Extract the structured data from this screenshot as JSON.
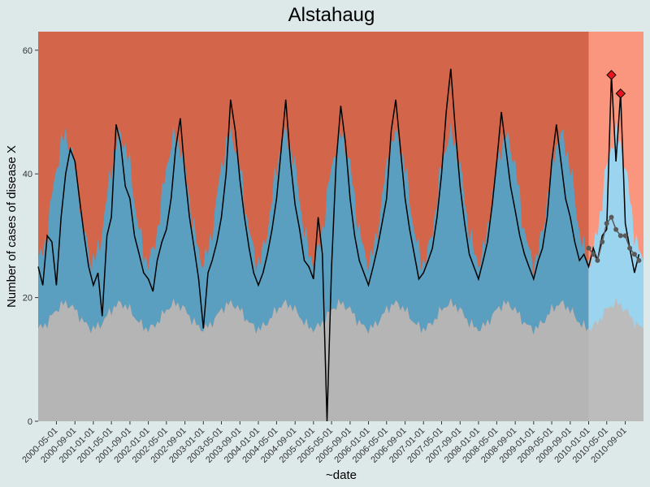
{
  "chart_data": {
    "type": "line",
    "title": "Alstahaug",
    "xlabel": "~date",
    "ylabel": "Number of cases of disease X",
    "ylim": [
      0,
      63
    ],
    "y_ticks": [
      0,
      20,
      40,
      60
    ],
    "x_ticks": [
      "2000-05-01",
      "2000-09-01",
      "2001-01-01",
      "2001-05-01",
      "2001-09-01",
      "2002-01-01",
      "2002-05-01",
      "2002-09-01",
      "2003-01-01",
      "2003-05-01",
      "2003-09-01",
      "2004-01-01",
      "2004-05-01",
      "2004-09-01",
      "2005-01-01",
      "2005-05-01",
      "2005-09-01",
      "2006-01-01",
      "2006-05-01",
      "2006-09-01",
      "2007-01-01",
      "2007-05-01",
      "2007-09-01",
      "2008-01-01",
      "2008-05-01",
      "2008-09-01",
      "2009-01-01",
      "2009-05-01",
      "2009-09-01",
      "2010-01-01",
      "2010-05-01",
      "2010-09-01"
    ],
    "x_range": [
      "2000-01-01",
      "2010-12-31"
    ],
    "forecast_start": "2010-01-01",
    "grid": false,
    "colors": {
      "background": "#dde9e9",
      "alert_zone": "#d2654a",
      "alert_zone_forecast": "#fa8a70",
      "normal_band": "#5a9fc0",
      "normal_band_forecast": "#8fd0ee",
      "baseline_zone": "#b5b5b5",
      "forecast_shade": "#ffffff",
      "observed_line": "#000000",
      "forecast_points": "#595959",
      "outbreak_marker": "#e8141e"
    },
    "series": [
      {
        "name": "observed",
        "points": [
          [
            "2000-01-01",
            25
          ],
          [
            "2000-02-01",
            22
          ],
          [
            "2000-03-01",
            30
          ],
          [
            "2000-04-01",
            29
          ],
          [
            "2000-05-01",
            22
          ],
          [
            "2000-06-01",
            33
          ],
          [
            "2000-07-01",
            40
          ],
          [
            "2000-08-01",
            44
          ],
          [
            "2000-09-01",
            42
          ],
          [
            "2000-10-01",
            36
          ],
          [
            "2000-11-01",
            30
          ],
          [
            "2000-12-01",
            25
          ],
          [
            "2001-01-01",
            22
          ],
          [
            "2001-02-01",
            24
          ],
          [
            "2001-03-01",
            17
          ],
          [
            "2001-04-01",
            30
          ],
          [
            "2001-05-01",
            33
          ],
          [
            "2001-06-01",
            48
          ],
          [
            "2001-07-01",
            45
          ],
          [
            "2001-08-01",
            38
          ],
          [
            "2001-09-01",
            36
          ],
          [
            "2001-10-01",
            30
          ],
          [
            "2001-11-01",
            27
          ],
          [
            "2001-12-01",
            24
          ],
          [
            "2002-01-01",
            23
          ],
          [
            "2002-02-01",
            21
          ],
          [
            "2002-03-01",
            26
          ],
          [
            "2002-04-01",
            29
          ],
          [
            "2002-05-01",
            31
          ],
          [
            "2002-06-01",
            36
          ],
          [
            "2002-07-01",
            44
          ],
          [
            "2002-08-01",
            49
          ],
          [
            "2002-09-01",
            40
          ],
          [
            "2002-10-01",
            33
          ],
          [
            "2002-11-01",
            28
          ],
          [
            "2002-12-01",
            23
          ],
          [
            "2003-01-01",
            15
          ],
          [
            "2003-02-01",
            24
          ],
          [
            "2003-03-01",
            26
          ],
          [
            "2003-04-01",
            29
          ],
          [
            "2003-05-01",
            33
          ],
          [
            "2003-06-01",
            40
          ],
          [
            "2003-07-01",
            52
          ],
          [
            "2003-08-01",
            47
          ],
          [
            "2003-09-01",
            39
          ],
          [
            "2003-10-01",
            33
          ],
          [
            "2003-11-01",
            28
          ],
          [
            "2003-12-01",
            24
          ],
          [
            "2004-01-01",
            22
          ],
          [
            "2004-02-01",
            24
          ],
          [
            "2004-03-01",
            27
          ],
          [
            "2004-04-01",
            31
          ],
          [
            "2004-05-01",
            36
          ],
          [
            "2004-06-01",
            44
          ],
          [
            "2004-07-01",
            52
          ],
          [
            "2004-08-01",
            42
          ],
          [
            "2004-09-01",
            35
          ],
          [
            "2004-10-01",
            31
          ],
          [
            "2004-11-01",
            26
          ],
          [
            "2004-12-01",
            25
          ],
          [
            "2005-01-01",
            23
          ],
          [
            "2005-02-01",
            33
          ],
          [
            "2005-03-01",
            27
          ],
          [
            "2005-04-01",
            0
          ],
          [
            "2005-05-01",
            25
          ],
          [
            "2005-06-01",
            42
          ],
          [
            "2005-07-01",
            51
          ],
          [
            "2005-08-01",
            45
          ],
          [
            "2005-09-01",
            36
          ],
          [
            "2005-10-01",
            30
          ],
          [
            "2005-11-01",
            26
          ],
          [
            "2005-12-01",
            24
          ],
          [
            "2006-01-01",
            22
          ],
          [
            "2006-02-01",
            25
          ],
          [
            "2006-03-01",
            28
          ],
          [
            "2006-04-01",
            32
          ],
          [
            "2006-05-01",
            36
          ],
          [
            "2006-06-01",
            47
          ],
          [
            "2006-07-01",
            52
          ],
          [
            "2006-08-01",
            44
          ],
          [
            "2006-09-01",
            36
          ],
          [
            "2006-10-01",
            31
          ],
          [
            "2006-11-01",
            27
          ],
          [
            "2006-12-01",
            23
          ],
          [
            "2007-01-01",
            24
          ],
          [
            "2007-02-01",
            26
          ],
          [
            "2007-03-01",
            28
          ],
          [
            "2007-04-01",
            33
          ],
          [
            "2007-05-01",
            40
          ],
          [
            "2007-06-01",
            50
          ],
          [
            "2007-07-01",
            57
          ],
          [
            "2007-08-01",
            47
          ],
          [
            "2007-09-01",
            38
          ],
          [
            "2007-10-01",
            32
          ],
          [
            "2007-11-01",
            27
          ],
          [
            "2007-12-01",
            25
          ],
          [
            "2008-01-01",
            23
          ],
          [
            "2008-02-01",
            26
          ],
          [
            "2008-03-01",
            29
          ],
          [
            "2008-04-01",
            35
          ],
          [
            "2008-05-01",
            42
          ],
          [
            "2008-06-01",
            50
          ],
          [
            "2008-07-01",
            44
          ],
          [
            "2008-08-01",
            38
          ],
          [
            "2008-09-01",
            34
          ],
          [
            "2008-10-01",
            30
          ],
          [
            "2008-11-01",
            27
          ],
          [
            "2008-12-01",
            25
          ],
          [
            "2009-01-01",
            23
          ],
          [
            "2009-02-01",
            26
          ],
          [
            "2009-03-01",
            28
          ],
          [
            "2009-04-01",
            33
          ],
          [
            "2009-05-01",
            42
          ],
          [
            "2009-06-01",
            48
          ],
          [
            "2009-07-01",
            42
          ],
          [
            "2009-08-01",
            36
          ],
          [
            "2009-09-01",
            33
          ],
          [
            "2009-10-01",
            29
          ],
          [
            "2009-11-01",
            26
          ],
          [
            "2009-12-01",
            27
          ],
          [
            "2010-01-01",
            25
          ],
          [
            "2010-02-01",
            28
          ],
          [
            "2010-03-01",
            26
          ],
          [
            "2010-04-01",
            30
          ],
          [
            "2010-05-01",
            31
          ],
          [
            "2010-06-01",
            56
          ],
          [
            "2010-07-01",
            42
          ],
          [
            "2010-08-01",
            53
          ],
          [
            "2010-09-01",
            32
          ],
          [
            "2010-10-01",
            28
          ],
          [
            "2010-11-01",
            24
          ],
          [
            "2010-12-01",
            27
          ]
        ]
      },
      {
        "name": "forecast",
        "points": [
          [
            "2010-01-01",
            28
          ],
          [
            "2010-02-01",
            27
          ],
          [
            "2010-03-01",
            26
          ],
          [
            "2010-04-01",
            29
          ],
          [
            "2010-05-01",
            32
          ],
          [
            "2010-06-01",
            33
          ],
          [
            "2010-07-01",
            31
          ],
          [
            "2010-08-01",
            30
          ],
          [
            "2010-09-01",
            30
          ],
          [
            "2010-10-01",
            28
          ],
          [
            "2010-11-01",
            27
          ],
          [
            "2010-12-01",
            26
          ]
        ]
      }
    ],
    "bands": {
      "normal_upper_mean": 36,
      "normal_upper_amplitude": 10,
      "normal_lower_mean": 17,
      "normal_lower_amplitude": 2,
      "peak_month": 7
    },
    "outbreak_markers": [
      [
        "2010-06-01",
        56
      ],
      [
        "2010-08-01",
        53
      ]
    ]
  }
}
